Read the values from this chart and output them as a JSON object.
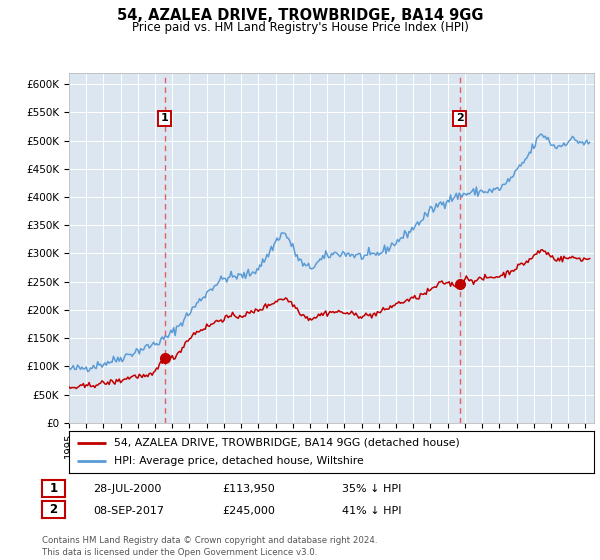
{
  "title": "54, AZALEA DRIVE, TROWBRIDGE, BA14 9GG",
  "subtitle": "Price paid vs. HM Land Registry's House Price Index (HPI)",
  "xlim_start": 1995.0,
  "xlim_end": 2025.5,
  "ylim": [
    0,
    620000
  ],
  "yticks": [
    0,
    50000,
    100000,
    150000,
    200000,
    250000,
    300000,
    350000,
    400000,
    450000,
    500000,
    550000,
    600000
  ],
  "ytick_labels": [
    "£0",
    "£50K",
    "£100K",
    "£150K",
    "£200K",
    "£250K",
    "£300K",
    "£350K",
    "£400K",
    "£450K",
    "£500K",
    "£550K",
    "£600K"
  ],
  "hpi_color": "#5b9bd5",
  "price_color": "#c00000",
  "vline_color": "#e06060",
  "sale1_x": 2000.55,
  "sale1_y": 113950,
  "sale1_label": "1",
  "sale1_date": "28-JUL-2000",
  "sale1_price": "£113,950",
  "sale1_hpi": "35% ↓ HPI",
  "sale2_x": 2017.69,
  "sale2_y": 245000,
  "sale2_label": "2",
  "sale2_date": "08-SEP-2017",
  "sale2_price": "£245,000",
  "sale2_hpi": "41% ↓ HPI",
  "legend_line1": "54, AZALEA DRIVE, TROWBRIDGE, BA14 9GG (detached house)",
  "legend_line2": "HPI: Average price, detached house, Wiltshire",
  "footer": "Contains HM Land Registry data © Crown copyright and database right 2024.\nThis data is licensed under the Open Government Licence v3.0.",
  "bg_color": "#dce6f1"
}
